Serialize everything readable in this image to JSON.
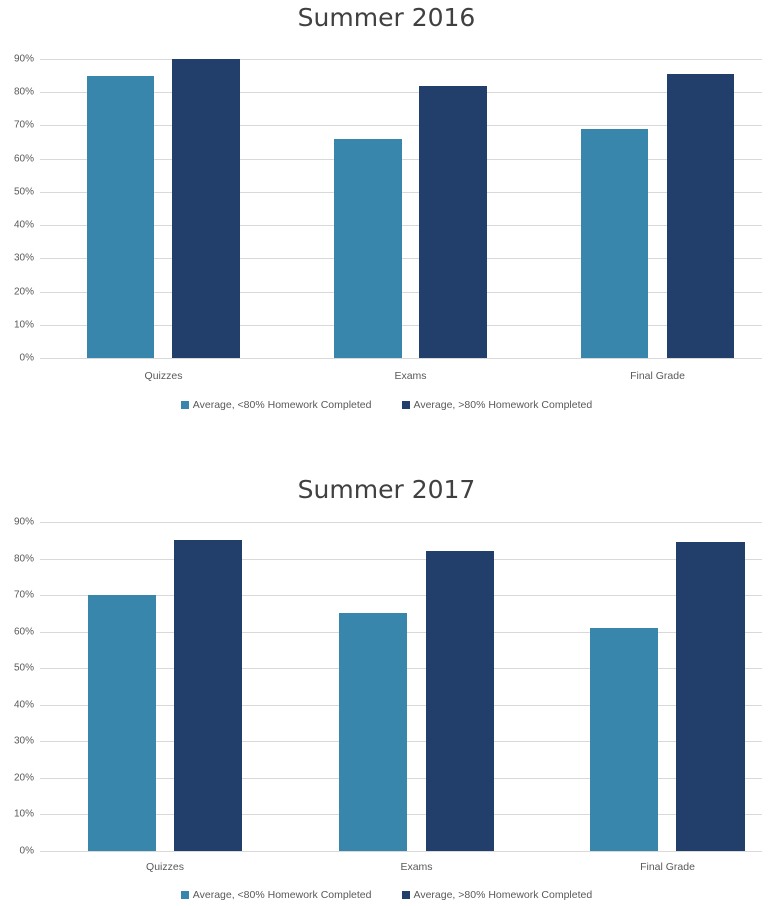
{
  "colors": {
    "series_low": "#3886ac",
    "series_high": "#223f6b",
    "gridline": "#d9d9d9",
    "text": "#595959",
    "title": "#404040"
  },
  "chart_data": [
    {
      "type": "bar",
      "title": "Summer 2016",
      "xlabel": "",
      "ylabel": "",
      "ylim": [
        0,
        0.9
      ],
      "yticks": [
        "0%",
        "10%",
        "20%",
        "30%",
        "40%",
        "50%",
        "60%",
        "70%",
        "80%",
        "90%"
      ],
      "grid": true,
      "legend_position": "bottom",
      "categories": [
        "Quizzes",
        "Exams",
        "Final Grade"
      ],
      "series": [
        {
          "name": "Average, <80% Homework Completed",
          "values": [
            0.85,
            0.66,
            0.69
          ]
        },
        {
          "name": "Average, >80% Homework Completed",
          "values": [
            0.9,
            0.82,
            0.855
          ]
        }
      ]
    },
    {
      "type": "bar",
      "title": "Summer 2017",
      "xlabel": "",
      "ylabel": "",
      "ylim": [
        0,
        0.9
      ],
      "yticks": [
        "0%",
        "10%",
        "20%",
        "30%",
        "40%",
        "50%",
        "60%",
        "70%",
        "80%",
        "90%"
      ],
      "grid": true,
      "legend_position": "bottom",
      "categories": [
        "Quizzes",
        "Exams",
        "Final Grade"
      ],
      "series": [
        {
          "name": "Average, <80% Homework Completed",
          "values": [
            0.7,
            0.65,
            0.61
          ]
        },
        {
          "name": "Average, >80% Homework Completed",
          "values": [
            0.85,
            0.82,
            0.846
          ]
        }
      ]
    }
  ]
}
